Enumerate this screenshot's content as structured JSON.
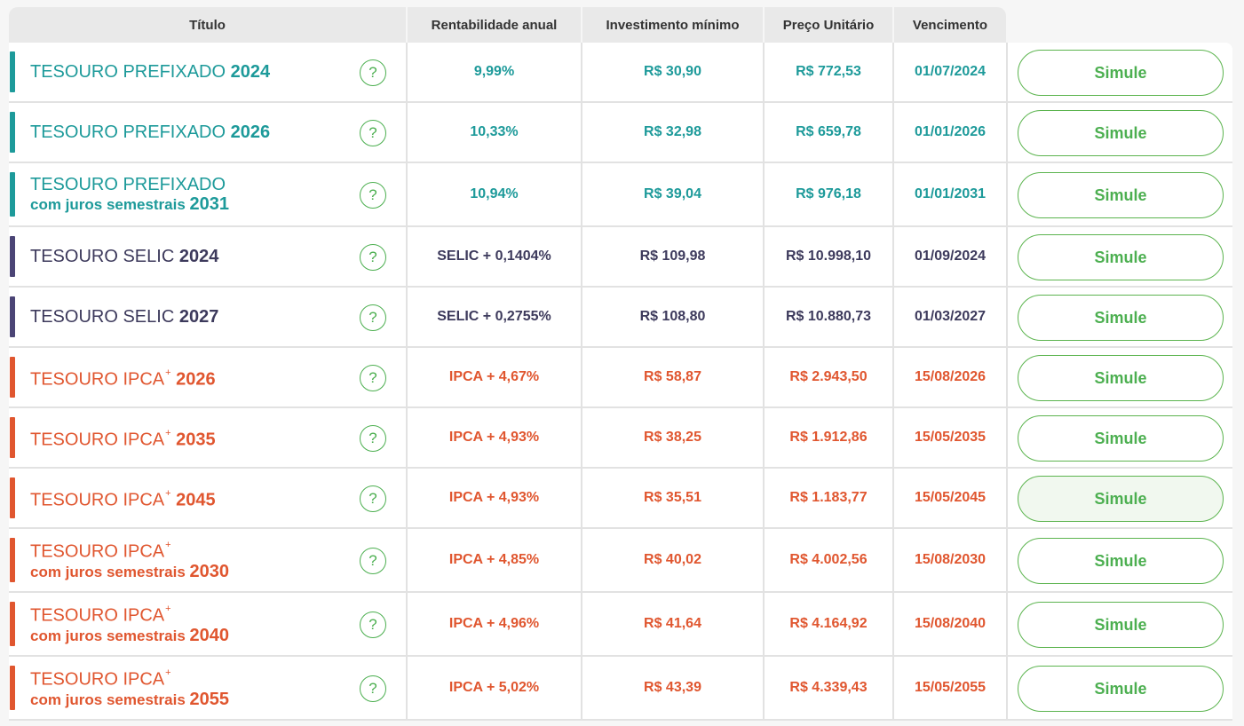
{
  "headers": {
    "titulo": "Título",
    "rentabilidade": "Rentabilidade anual",
    "investimento": "Investimento mínimo",
    "preco": "Preço Unitário",
    "vencimento": "Vencimento"
  },
  "help_glyph": "?",
  "colors": {
    "teal": "#1d9a9a",
    "navy": "#3d3a5c",
    "orange": "#e0562f",
    "green": "#4caf50"
  },
  "rows": [
    {
      "name": "TESOURO PREFIXADO",
      "sup": "",
      "sub": "",
      "year": "2024",
      "rent": "9,99%",
      "invest": "R$ 30,90",
      "preco": "R$ 772,53",
      "venc": "01/07/2024",
      "button": "Simule"
    },
    {
      "name": "TESOURO PREFIXADO",
      "sup": "",
      "sub": "",
      "year": "2026",
      "rent": "10,33%",
      "invest": "R$ 32,98",
      "preco": "R$ 659,78",
      "venc": "01/01/2026",
      "button": "Simule"
    },
    {
      "name": "TESOURO PREFIXADO",
      "sup": "",
      "sub": "com juros semestrais",
      "year": "2031",
      "rent": "10,94%",
      "invest": "R$ 39,04",
      "preco": "R$ 976,18",
      "venc": "01/01/2031",
      "button": "Simule"
    },
    {
      "name": "TESOURO SELIC",
      "sup": "",
      "sub": "",
      "year": "2024",
      "rent": "SELIC + 0,1404%",
      "invest": "R$ 109,98",
      "preco": "R$ 10.998,10",
      "venc": "01/09/2024",
      "button": "Simule"
    },
    {
      "name": "TESOURO SELIC",
      "sup": "",
      "sub": "",
      "year": "2027",
      "rent": "SELIC + 0,2755%",
      "invest": "R$ 108,80",
      "preco": "R$ 10.880,73",
      "venc": "01/03/2027",
      "button": "Simule"
    },
    {
      "name": "TESOURO IPCA",
      "sup": "+",
      "sub": "",
      "year": "2026",
      "rent": "IPCA + 4,67%",
      "invest": "R$ 58,87",
      "preco": "R$ 2.943,50",
      "venc": "15/08/2026",
      "button": "Simule"
    },
    {
      "name": "TESOURO IPCA",
      "sup": "+",
      "sub": "",
      "year": "2035",
      "rent": "IPCA + 4,93%",
      "invest": "R$ 38,25",
      "preco": "R$ 1.912,86",
      "venc": "15/05/2035",
      "button": "Simule"
    },
    {
      "name": "TESOURO IPCA",
      "sup": "+",
      "sub": "",
      "year": "2045",
      "rent": "IPCA + 4,93%",
      "invest": "R$ 35,51",
      "preco": "R$ 1.183,77",
      "venc": "15/05/2045",
      "button": "Simule"
    },
    {
      "name": "TESOURO IPCA",
      "sup": "+",
      "sub": "com juros semestrais",
      "year": "2030",
      "rent": "IPCA + 4,85%",
      "invest": "R$ 40,02",
      "preco": "R$ 4.002,56",
      "venc": "15/08/2030",
      "button": "Simule"
    },
    {
      "name": "TESOURO IPCA",
      "sup": "+",
      "sub": "com juros semestrais",
      "year": "2040",
      "rent": "IPCA + 4,96%",
      "invest": "R$ 41,64",
      "preco": "R$ 4.164,92",
      "venc": "15/08/2040",
      "button": "Simule"
    },
    {
      "name": "TESOURO IPCA",
      "sup": "+",
      "sub": "com juros semestrais",
      "year": "2055",
      "rent": "IPCA + 5,02%",
      "invest": "R$ 43,39",
      "preco": "R$ 4.339,43",
      "venc": "15/05/2055",
      "button": "Simule"
    }
  ]
}
